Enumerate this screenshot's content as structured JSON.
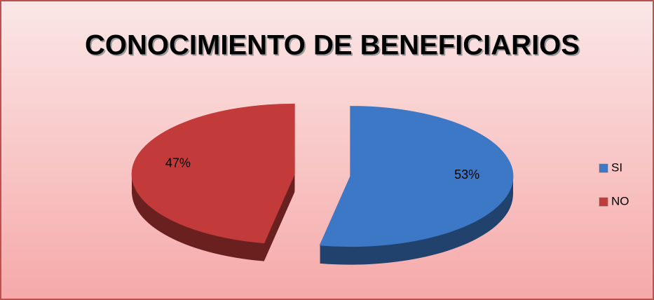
{
  "chart_data": {
    "type": "pie",
    "title": "CONOCIMIENTO DE BENEFICIARIOS",
    "categories": [
      "SI",
      "NO"
    ],
    "values": [
      53,
      47
    ],
    "value_labels": [
      "53%",
      "47%"
    ],
    "colors": [
      "#3c78c6",
      "#c23a3a"
    ],
    "legend": "right"
  }
}
